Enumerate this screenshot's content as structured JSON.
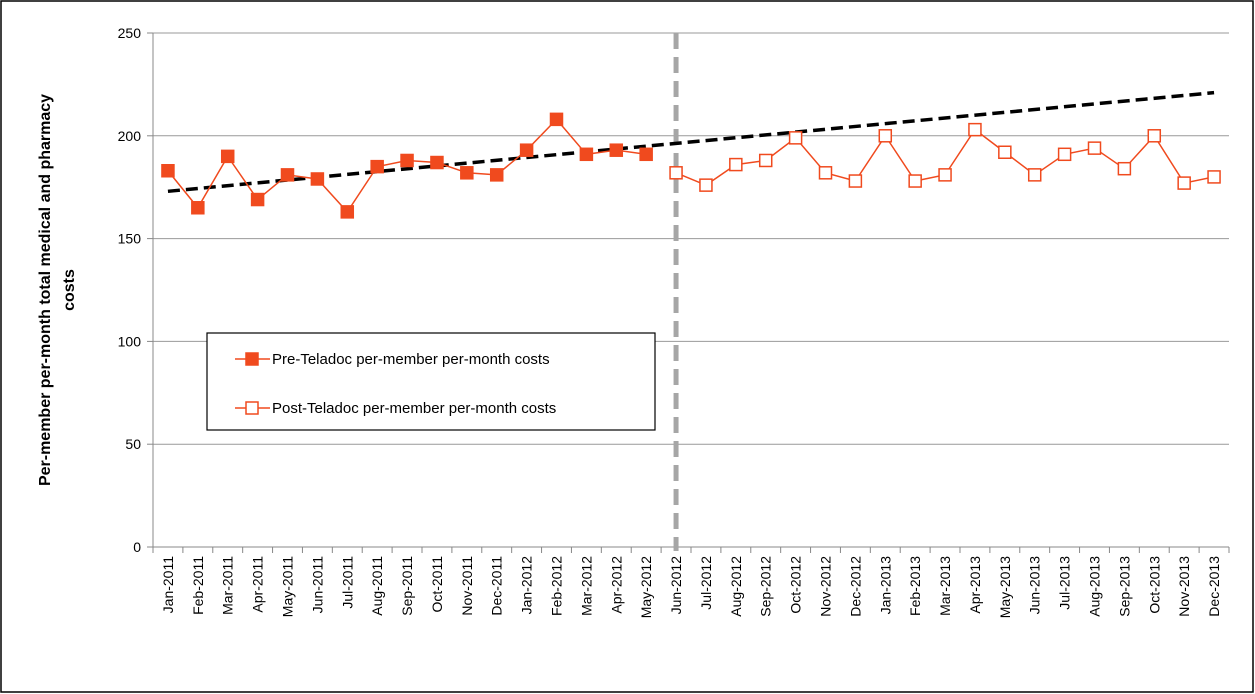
{
  "chart_data": {
    "type": "line",
    "ylabel": [
      "Per-member per-month total medical and pharmacy",
      "costs"
    ],
    "categories": [
      "Jan-2011",
      "Feb-2011",
      "Mar-2011",
      "Apr-2011",
      "May-2011",
      "Jun-2011",
      "Jul-2011",
      "Aug-2011",
      "Sep-2011",
      "Oct-2011",
      "Nov-2011",
      "Dec-2011",
      "Jan-2012",
      "Feb-2012",
      "Mar-2012",
      "Apr-2012",
      "May-2012",
      "Jun-2012",
      "Jul-2012",
      "Aug-2012",
      "Sep-2012",
      "Oct-2012",
      "Nov-2012",
      "Dec-2012",
      "Jan-2013",
      "Feb-2013",
      "Mar-2013",
      "Apr-2013",
      "May-2013",
      "Jun-2013",
      "Jul-2013",
      "Aug-2013",
      "Sep-2013",
      "Oct-2013",
      "Nov-2013",
      "Dec-2013"
    ],
    "series": [
      {
        "name": "Pre-Teladoc per-member per-month costs",
        "color": "#f04a1e",
        "filled": true,
        "values": [
          183,
          165,
          190,
          169,
          181,
          179,
          163,
          185,
          188,
          187,
          182,
          181,
          193,
          208,
          191,
          193,
          191,
          null,
          null,
          null,
          null,
          null,
          null,
          null,
          null,
          null,
          null,
          null,
          null,
          null,
          null,
          null,
          null,
          null,
          null,
          null
        ]
      },
      {
        "name": "Post-Teladoc per-member per-month costs",
        "color": "#f04a1e",
        "filled": false,
        "values": [
          null,
          null,
          null,
          null,
          null,
          null,
          null,
          null,
          null,
          null,
          null,
          null,
          null,
          null,
          null,
          null,
          null,
          182,
          176,
          186,
          188,
          199,
          182,
          178,
          200,
          178,
          181,
          203,
          192,
          181,
          191,
          194,
          184,
          200,
          177,
          180
        ]
      }
    ],
    "trendline": {
      "from": 173,
      "to": 221,
      "color": "#000000"
    },
    "divider_category": "Jun-2012",
    "divider_color": "#a6a6a6",
    "ylim": [
      0,
      250
    ],
    "yticks": [
      0,
      50,
      100,
      150,
      200,
      250
    ],
    "grid": true
  }
}
